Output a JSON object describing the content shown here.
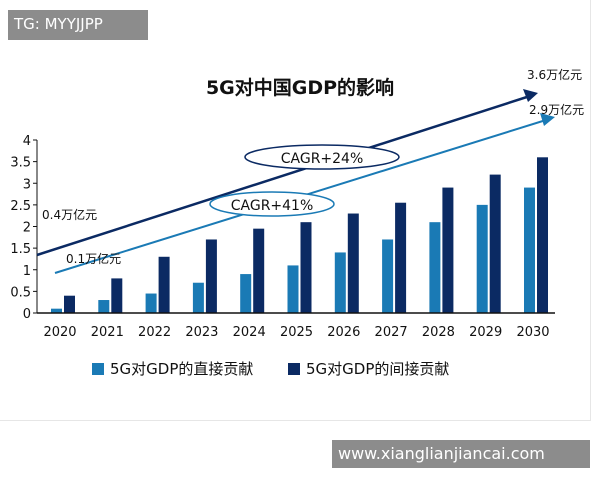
{
  "watermarks": {
    "top": "TG: MYYJJPP",
    "bottom": "www.xianglianjiancai.com"
  },
  "colors": {
    "direct": "#1a7ab5",
    "indirect": "#0b2a63"
  },
  "chart_data": {
    "type": "bar",
    "title": "5G对中国GDP的影响",
    "categories": [
      "2020",
      "2021",
      "2022",
      "2023",
      "2024",
      "2025",
      "2026",
      "2027",
      "2028",
      "2029",
      "2030"
    ],
    "series": [
      {
        "name": "5G对GDP的直接贡献",
        "values": [
          0.1,
          0.3,
          0.45,
          0.7,
          0.9,
          1.1,
          1.4,
          1.7,
          2.1,
          2.5,
          2.9
        ]
      },
      {
        "name": "5G对GDP的间接贡献",
        "values": [
          0.4,
          0.8,
          1.3,
          1.7,
          1.95,
          2.1,
          2.3,
          2.55,
          2.9,
          3.2,
          3.6
        ]
      }
    ],
    "ylim": [
      0,
      4
    ],
    "yticks": [
      "0",
      "0.5",
      "1",
      "1.5",
      "2",
      "2.5",
      "3",
      "3.5",
      "4"
    ],
    "grid": false,
    "legend": "bottom",
    "annotations": {
      "indirect_start": "0.4万亿元",
      "indirect_end": "3.6万亿元",
      "indirect_cagr": "CAGR+24%",
      "direct_start": "0.1万亿元",
      "direct_end": "2.9万亿元",
      "direct_cagr": "CAGR+41%"
    }
  }
}
